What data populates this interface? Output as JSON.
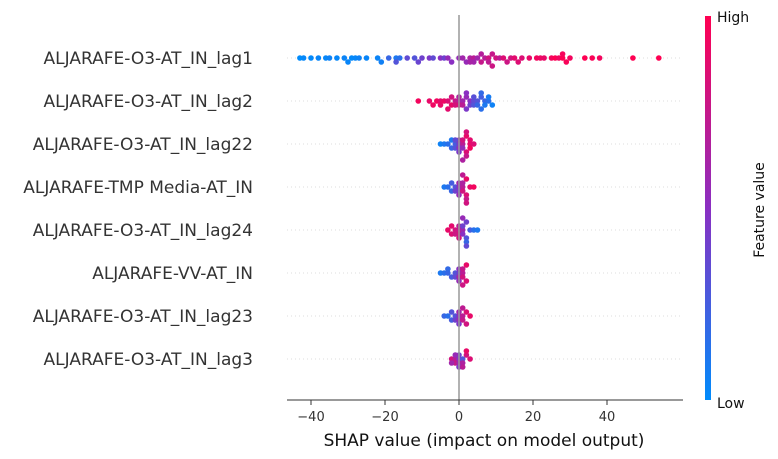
{
  "chart_data": {
    "type": "scatter",
    "subtype": "shap-beeswarm",
    "title": "",
    "xlabel": "SHAP value (impact on model output)",
    "xlim": [
      -46,
      60
    ],
    "xticks": [
      -40,
      -20,
      0,
      20,
      40
    ],
    "xtick_labels": [
      "−40",
      "−20",
      "0",
      "20",
      "40"
    ],
    "grid": false,
    "colorbar": {
      "title": "Feature value",
      "high_label": "High",
      "low_label": "Low",
      "low_color": "#008bfb",
      "mid_color": "#8a2fc2",
      "high_color": "#ff0052"
    },
    "features": [
      {
        "name": "ALJARAFE-O3-AT_IN_lag1",
        "points": [
          [
            -42,
            0.02
          ],
          [
            -40,
            0.01
          ],
          [
            -38,
            0.03
          ],
          [
            -36,
            0.02
          ],
          [
            -35,
            0.05
          ],
          [
            -33,
            0.02
          ],
          [
            -31,
            0.04
          ],
          [
            -29,
            0.01
          ],
          [
            -28,
            0.02
          ],
          [
            -27,
            0.05
          ],
          [
            -25,
            0.03
          ],
          [
            -22,
            0.04
          ],
          [
            -19,
            0.2
          ],
          [
            -17,
            0.1
          ],
          [
            -17,
            0.3
          ],
          [
            -16,
            0.15
          ],
          [
            -14,
            0.35
          ],
          [
            -12,
            0.3
          ],
          [
            -10,
            0.4
          ],
          [
            -8,
            0.45
          ],
          [
            -7,
            0.35
          ],
          [
            -5,
            0.5
          ],
          [
            -4,
            0.4
          ],
          [
            -3,
            0.55
          ],
          [
            -2,
            0.5
          ],
          [
            0,
            0.55
          ],
          [
            1,
            0.6
          ],
          [
            2,
            0.55
          ],
          [
            3,
            0.65
          ],
          [
            4,
            0.7
          ],
          [
            4,
            0.6
          ],
          [
            5,
            0.6
          ],
          [
            6,
            0.75
          ],
          [
            6,
            0.68
          ],
          [
            7,
            0.7
          ],
          [
            8,
            0.8
          ],
          [
            8,
            0.72
          ],
          [
            9,
            0.75
          ],
          [
            10,
            0.8
          ],
          [
            11,
            0.72
          ],
          [
            12,
            0.85
          ],
          [
            13,
            0.78
          ],
          [
            14,
            0.8
          ],
          [
            15,
            0.88
          ],
          [
            17,
            0.85
          ],
          [
            19,
            0.9
          ],
          [
            21,
            0.95
          ],
          [
            23,
            0.9
          ],
          [
            25,
            0.95
          ],
          [
            26,
            1.0
          ],
          [
            27,
            0.93
          ],
          [
            28,
            1.0
          ],
          [
            29,
            0.97
          ],
          [
            30,
            0.95
          ],
          [
            34,
            1.0
          ],
          [
            36,
            0.98
          ],
          [
            38,
            0.95
          ],
          [
            47,
            1.0
          ],
          [
            54,
            1.0
          ],
          [
            -43,
            0.0
          ],
          [
            -30,
            0.03
          ],
          [
            -21,
            0.06
          ],
          [
            -11,
            0.38
          ],
          [
            3,
            0.62
          ],
          [
            9,
            0.78
          ],
          [
            16,
            0.85
          ],
          [
            22,
            0.92
          ],
          [
            28,
            0.96
          ]
        ]
      },
      {
        "name": "ALJARAFE-O3-AT_IN_lag2",
        "points": [
          [
            -11,
            0.95
          ],
          [
            -8,
            0.9
          ],
          [
            -6,
            0.95
          ],
          [
            -5,
            0.88
          ],
          [
            -4,
            0.92
          ],
          [
            -3,
            0.85
          ],
          [
            -2,
            0.9
          ],
          [
            -2,
            0.8
          ],
          [
            -1,
            0.75
          ],
          [
            0,
            0.7
          ],
          [
            0,
            0.8
          ],
          [
            1,
            0.6
          ],
          [
            1,
            0.7
          ],
          [
            2,
            0.55
          ],
          [
            2,
            0.45
          ],
          [
            3,
            0.5
          ],
          [
            3,
            0.4
          ],
          [
            4,
            0.35
          ],
          [
            4,
            0.3
          ],
          [
            5,
            0.3
          ],
          [
            5,
            0.2
          ],
          [
            6,
            0.25
          ],
          [
            6,
            0.15
          ],
          [
            7,
            0.2
          ],
          [
            7,
            0.1
          ],
          [
            8,
            0.15
          ],
          [
            9,
            0.05
          ],
          [
            -7,
            0.93
          ],
          [
            -3,
            0.88
          ],
          [
            -1,
            0.82
          ],
          [
            -5,
            0.9
          ],
          [
            0,
            0.65
          ],
          [
            2,
            0.5
          ],
          [
            4,
            0.32
          ],
          [
            6,
            0.18
          ],
          [
            8,
            0.08
          ]
        ]
      },
      {
        "name": "ALJARAFE-O3-AT_IN_lag22",
        "points": [
          [
            -5,
            0.05
          ],
          [
            -4,
            0.1
          ],
          [
            -3,
            0.15
          ],
          [
            -2,
            0.2
          ],
          [
            -2,
            0.1
          ],
          [
            -1,
            0.25
          ],
          [
            -1,
            0.3
          ],
          [
            0,
            0.4
          ],
          [
            0,
            0.5
          ],
          [
            0,
            0.6
          ],
          [
            1,
            0.7
          ],
          [
            1,
            0.55
          ],
          [
            1,
            0.8
          ],
          [
            2,
            0.85
          ],
          [
            2,
            0.9
          ],
          [
            2,
            0.75
          ],
          [
            3,
            0.9
          ],
          [
            3,
            0.95
          ],
          [
            4,
            0.85
          ],
          [
            0,
            0.45
          ],
          [
            -1,
            0.35
          ],
          [
            2,
            0.82
          ],
          [
            1,
            0.65
          ],
          [
            3,
            0.88
          ]
        ]
      },
      {
        "name": "ALJARAFE-TMP Media-AT_IN",
        "points": [
          [
            -4,
            0.1
          ],
          [
            -3,
            0.15
          ],
          [
            -2,
            0.2
          ],
          [
            -1,
            0.3
          ],
          [
            -1,
            0.4
          ],
          [
            0,
            0.5
          ],
          [
            0,
            0.45
          ],
          [
            0,
            0.6
          ],
          [
            1,
            0.7
          ],
          [
            1,
            0.8
          ],
          [
            1,
            0.65
          ],
          [
            2,
            0.85
          ],
          [
            2,
            0.9
          ],
          [
            2,
            0.75
          ],
          [
            3,
            0.9
          ],
          [
            4,
            0.95
          ],
          [
            0,
            0.55
          ],
          [
            1,
            0.72
          ],
          [
            -2,
            0.25
          ],
          [
            2,
            0.8
          ]
        ]
      },
      {
        "name": "ALJARAFE-O3-AT_IN_lag24",
        "points": [
          [
            -3,
            0.9
          ],
          [
            -2,
            0.85
          ],
          [
            -1,
            0.8
          ],
          [
            0,
            0.75
          ],
          [
            0,
            0.85
          ],
          [
            0,
            0.7
          ],
          [
            1,
            0.6
          ],
          [
            1,
            0.5
          ],
          [
            1,
            0.4
          ],
          [
            2,
            0.3
          ],
          [
            2,
            0.4
          ],
          [
            2,
            0.2
          ],
          [
            3,
            0.25
          ],
          [
            4,
            0.15
          ],
          [
            5,
            0.1
          ],
          [
            -2,
            0.88
          ],
          [
            0,
            0.8
          ],
          [
            1,
            0.55
          ],
          [
            2,
            0.35
          ],
          [
            -1,
            0.78
          ]
        ]
      },
      {
        "name": "ALJARAFE-VV-AT_IN",
        "points": [
          [
            -5,
            0.1
          ],
          [
            -4,
            0.15
          ],
          [
            -3,
            0.2
          ],
          [
            -2,
            0.25
          ],
          [
            -1,
            0.3
          ],
          [
            -1,
            0.35
          ],
          [
            0,
            0.4
          ],
          [
            0,
            0.6
          ],
          [
            0,
            0.5
          ],
          [
            1,
            0.7
          ],
          [
            1,
            0.8
          ],
          [
            1,
            0.75
          ],
          [
            2,
            0.85
          ],
          [
            2,
            0.9
          ],
          [
            -3,
            0.18
          ],
          [
            0,
            0.55
          ],
          [
            1,
            0.78
          ]
        ]
      },
      {
        "name": "ALJARAFE-O3-AT_IN_lag23",
        "points": [
          [
            -4,
            0.2
          ],
          [
            -3,
            0.15
          ],
          [
            -2,
            0.25
          ],
          [
            -1,
            0.3
          ],
          [
            -1,
            0.4
          ],
          [
            0,
            0.5
          ],
          [
            0,
            0.55
          ],
          [
            0,
            0.6
          ],
          [
            1,
            0.7
          ],
          [
            1,
            0.75
          ],
          [
            2,
            0.85
          ],
          [
            2,
            0.8
          ],
          [
            3,
            0.9
          ],
          [
            0,
            0.45
          ],
          [
            1,
            0.72
          ],
          [
            -2,
            0.3
          ]
        ]
      },
      {
        "name": "ALJARAFE-O3-AT_IN_lag3",
        "points": [
          [
            -2,
            0.8
          ],
          [
            -1,
            0.7
          ],
          [
            -1,
            0.75
          ],
          [
            0,
            0.5
          ],
          [
            0,
            0.6
          ],
          [
            0,
            0.4
          ],
          [
            1,
            0.3
          ],
          [
            1,
            0.65
          ],
          [
            2,
            0.8
          ],
          [
            3,
            0.85
          ],
          [
            -1,
            0.55
          ],
          [
            0,
            0.45
          ],
          [
            1,
            0.7
          ],
          [
            2,
            0.9
          ],
          [
            -2,
            0.6
          ]
        ]
      }
    ]
  }
}
